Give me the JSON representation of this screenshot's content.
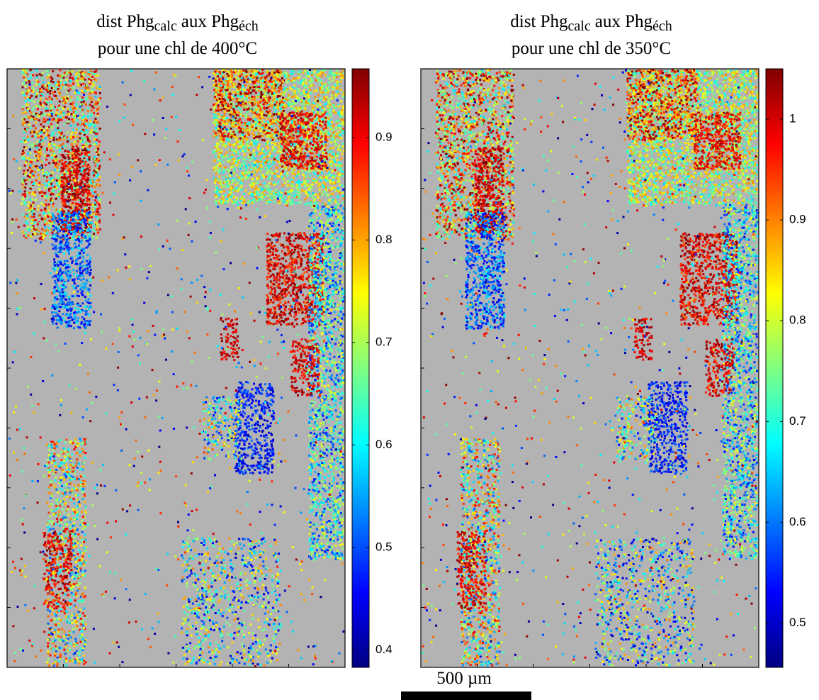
{
  "chart_data": [
    {
      "type": "heatmap",
      "title": {
        "part1": "dist Phg",
        "sub1": "calc",
        "part2": "aux Phg",
        "sub2": "éch",
        "line2": "pour une chl de 400°C"
      },
      "colormap": "jet",
      "clim": [
        0.383,
        0.967
      ],
      "cticks": [
        0.4,
        0.5,
        0.6,
        0.7,
        0.8,
        0.9
      ]
    },
    {
      "type": "heatmap",
      "title": {
        "part1": "dist Phg",
        "sub1": "calc",
        "part2": "aux Phg",
        "sub2": "éch",
        "line2": "pour une chl de 350°C"
      },
      "colormap": "jet",
      "clim": [
        0.456,
        1.05
      ],
      "cticks": [
        0.5,
        0.6,
        0.7,
        0.8,
        0.9,
        1
      ]
    }
  ],
  "scale_bar": {
    "label": "500 µm"
  }
}
